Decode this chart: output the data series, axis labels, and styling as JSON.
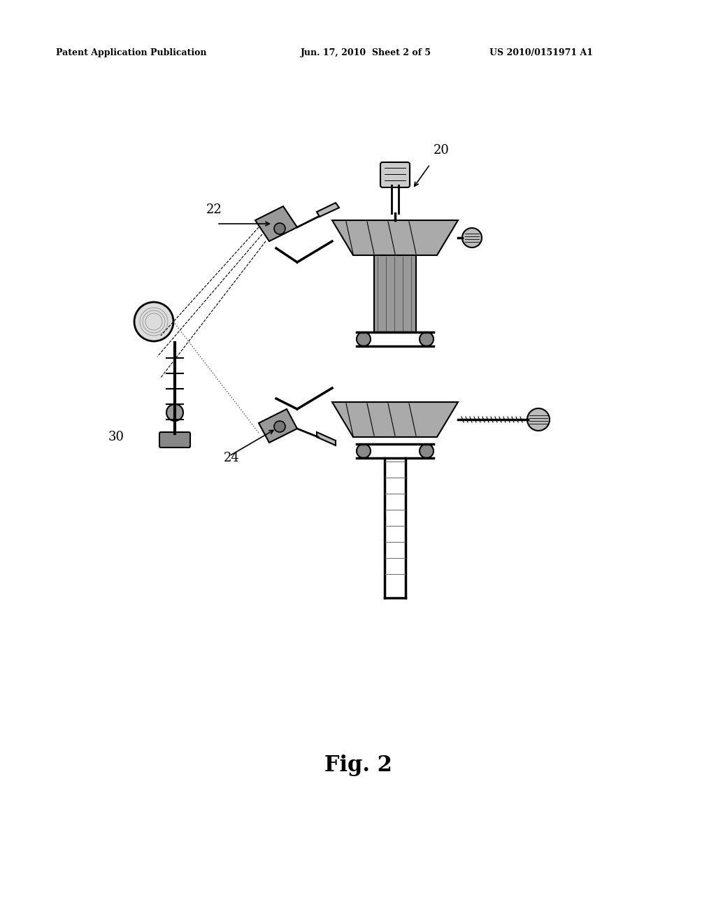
{
  "background_color": "#ffffff",
  "header_left": "Patent Application Publication",
  "header_mid": "Jun. 17, 2010  Sheet 2 of 5",
  "header_right": "US 2010/0151971 A1",
  "header_fontsize": 9,
  "fig_label": "Fig. 2",
  "fig_label_fontsize": 22,
  "label_20": "20",
  "label_22": "22",
  "label_24": "24",
  "label_30": "30",
  "label_fontsize": 13
}
